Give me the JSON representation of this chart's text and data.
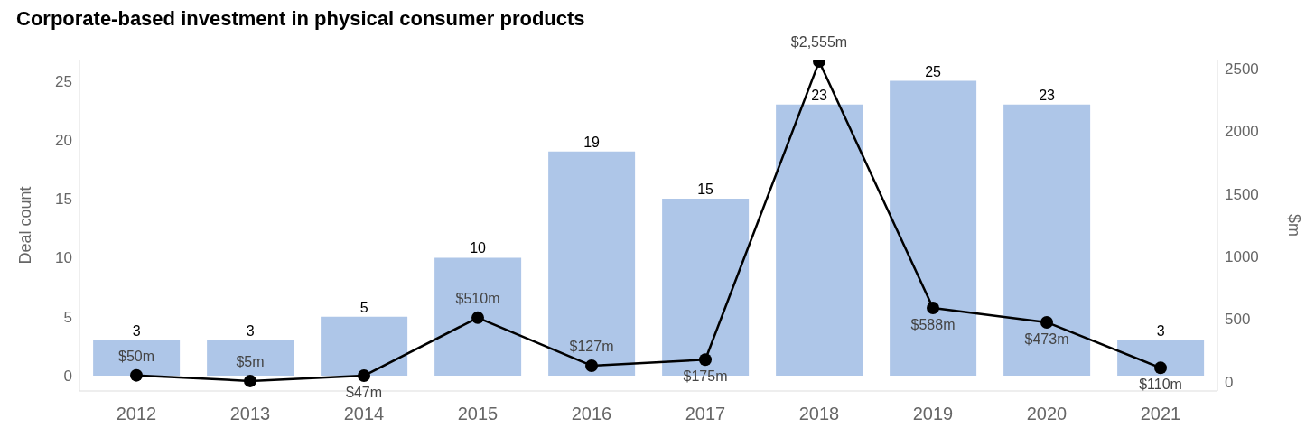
{
  "chart_data": {
    "type": "bar",
    "title": "Corporate-based investment in physical consumer products",
    "categories": [
      "2012",
      "2013",
      "2014",
      "2015",
      "2016",
      "2017",
      "2018",
      "2019",
      "2020",
      "2021"
    ],
    "series": [
      {
        "color": "#aec6e8",
        "values": [
          3,
          3,
          5,
          10,
          19,
          15,
          23,
          25,
          23,
          3
        ]
      },
      {
        "type": "line",
        "axis": "y2",
        "color": "#000000",
        "values": [
          50,
          5,
          47,
          510,
          127,
          175,
          2555,
          588,
          473,
          110
        ],
        "value_labels": [
          "$50m",
          "$5m",
          "$47m",
          "$510m",
          "$127m",
          "$175m",
          "$2,555m",
          "$588m",
          "$473m",
          "$110m"
        ]
      }
    ],
    "ylabel": "Deal count",
    "y2label": "$m",
    "ylim": [
      -1.3,
      26.8
    ],
    "yticks": [
      0,
      5,
      10,
      15,
      20,
      25
    ],
    "y2lim": [
      -75,
      2570
    ],
    "y2ticks": [
      0,
      500,
      1000,
      1500,
      2000,
      2500
    ],
    "data_labels": true,
    "marker": "circle",
    "grid": false,
    "legend": false
  }
}
